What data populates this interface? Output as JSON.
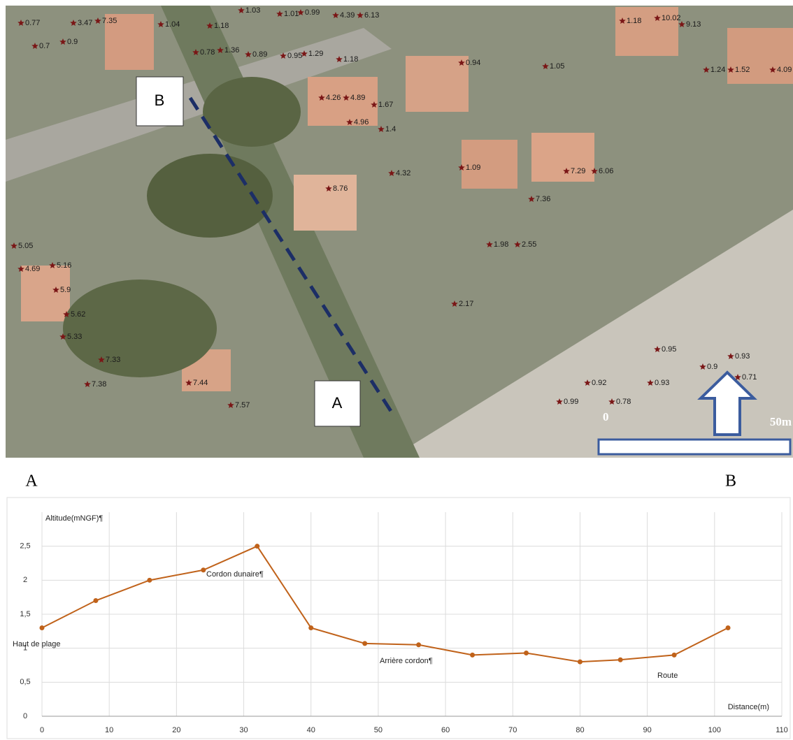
{
  "map": {
    "section_start": "A",
    "section_end": "B",
    "scale_zero": "0",
    "scale_length": "50m",
    "spot_heights": [
      "0.77",
      "3.47",
      "7.35",
      "1.04",
      "1.18",
      "1.03",
      "1.01",
      "0.99",
      "4.39",
      "6.13",
      "1.18",
      "10.02",
      "9.13",
      "0.7",
      "0.9",
      "0.78",
      "1.36",
      "0.89",
      "0.95",
      "1.29",
      "1.18",
      "0.94",
      "1.05",
      "1.24",
      "1.52",
      "4.09",
      "4.26",
      "4.89",
      "1.67",
      "4.96",
      "1.4",
      "8.76",
      "4.32",
      "1.09",
      "7.29",
      "6.06",
      "7.36",
      "5.9",
      "5.16",
      "4.69",
      "5.05",
      "5.62",
      "5.33",
      "7.33",
      "7.38",
      "7.44",
      "7.57",
      "1.98",
      "2.55",
      "2.17",
      "0.95",
      "0.9",
      "0.93",
      "0.71",
      "0.92",
      "0.93",
      "0.78",
      "0.99"
    ]
  },
  "chart_data": {
    "type": "line",
    "x_label": "Distance(m)",
    "y_label": "Altitude(mNGF)¶",
    "x": [
      0,
      8,
      16,
      24,
      32,
      40,
      48,
      56,
      64,
      72,
      80,
      86,
      94,
      102
    ],
    "series": [
      {
        "color": "#c0621a",
        "values": [
          1.3,
          1.7,
          2.0,
          2.15,
          2.5,
          1.3,
          1.07,
          1.05,
          0.9,
          0.93,
          0.8,
          0.83,
          0.9,
          1.3
        ]
      }
    ],
    "xlim": [
      0,
      110
    ],
    "ylim": [
      0,
      3
    ],
    "xticks": [
      0,
      10,
      20,
      30,
      40,
      50,
      60,
      70,
      80,
      90,
      100,
      110
    ],
    "yticks": [
      0,
      {
        "value": 0.5,
        "label": "0,5"
      },
      1,
      {
        "value": 1.5,
        "label": "1,5"
      },
      2,
      {
        "value": 2.5,
        "label": "2,5"
      }
    ],
    "grid": true,
    "annotations": [
      "Haut de plage",
      "Cordon dunaire¶",
      "Arrière cordon¶",
      "Route"
    ]
  }
}
